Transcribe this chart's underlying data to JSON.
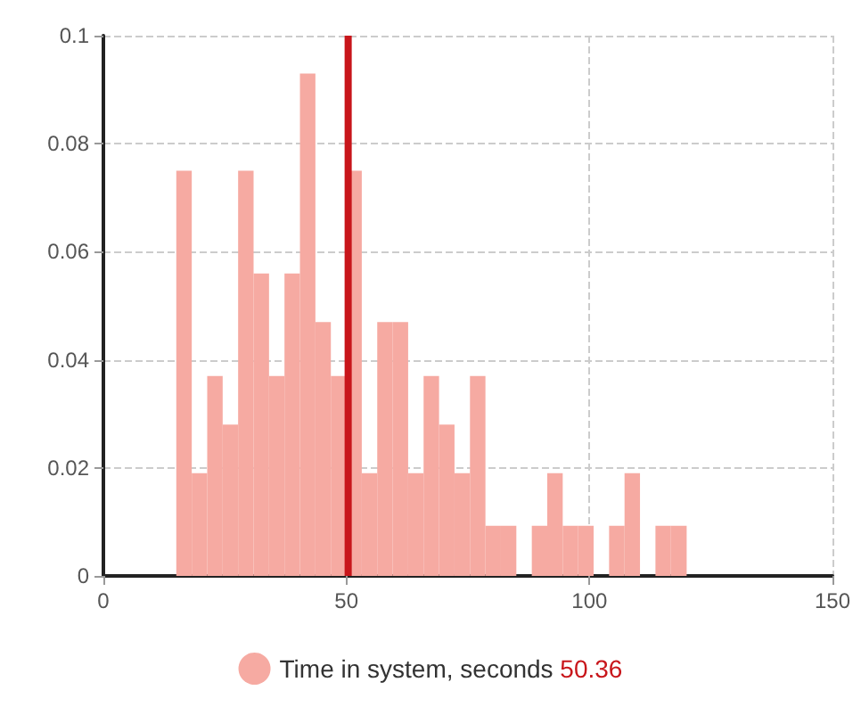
{
  "chart_data": {
    "type": "histogram",
    "bins": [
      15,
      18.18,
      21.36,
      24.54,
      27.72,
      30.9,
      34.08,
      37.26,
      40.44,
      43.62,
      46.8,
      49.98,
      53.16,
      56.34,
      59.52,
      62.7,
      65.88,
      69.06,
      72.24,
      75.42,
      78.6,
      81.78,
      84.96,
      88.14,
      91.32,
      94.5,
      97.68,
      100.86,
      104.04,
      107.22,
      110.4,
      113.58,
      116.76,
      120
    ],
    "series": [
      {
        "name": "Time in system, seconds",
        "color": "#f6aaa2",
        "values": [
          0.075,
          0.019,
          0.037,
          0.028,
          0.075,
          0.056,
          0.037,
          0.056,
          0.093,
          0.047,
          0.037,
          0.075,
          0.019,
          0.047,
          0.047,
          0.019,
          0.037,
          0.028,
          0.019,
          0.037,
          0.0093,
          0.0093,
          0,
          0.0093,
          0.019,
          0.0093,
          0.0093,
          0,
          0.0093,
          0.019,
          0,
          0.0093,
          0.0093
        ]
      }
    ],
    "ref_lines": [
      {
        "axis": "x",
        "value": 50.36,
        "label": "50.36",
        "color": "#c8161b"
      }
    ],
    "xlim": [
      0,
      150
    ],
    "xticks": [
      0,
      50,
      100,
      150
    ],
    "ylim": [
      0,
      0.1
    ],
    "yticks": [
      0,
      0.02,
      0.04,
      0.06,
      0.08,
      0.1
    ],
    "grid": true,
    "legend": "bottom"
  }
}
